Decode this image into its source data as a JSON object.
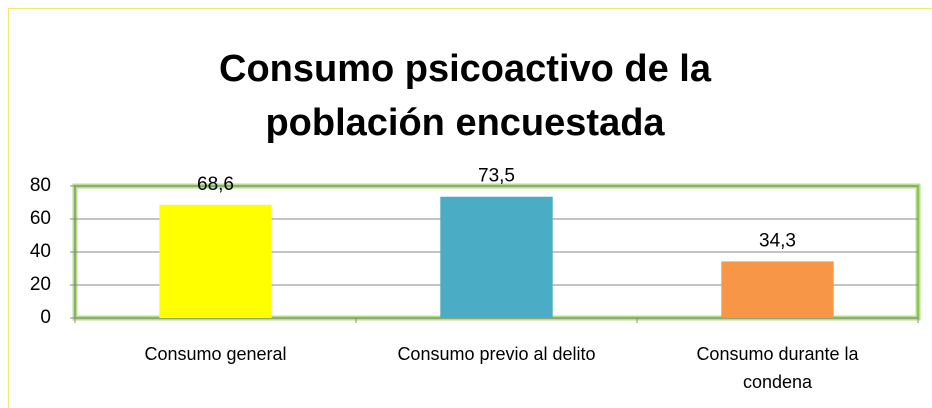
{
  "chart_data": {
    "type": "bar",
    "title": "Consumo psicoactivo de la población encuestada",
    "categories": [
      "Consumo general",
      "Consumo previo al delito",
      "Consumo durante la condena"
    ],
    "values": [
      68.6,
      73.5,
      34.3
    ],
    "value_labels": [
      "68,6",
      "73,5",
      "34,3"
    ],
    "colors": [
      "#ffff00",
      "#4bacc6",
      "#f79646"
    ],
    "ylim": [
      0,
      80
    ],
    "yticks": [
      0,
      20,
      40,
      60,
      80
    ],
    "grid": true
  }
}
